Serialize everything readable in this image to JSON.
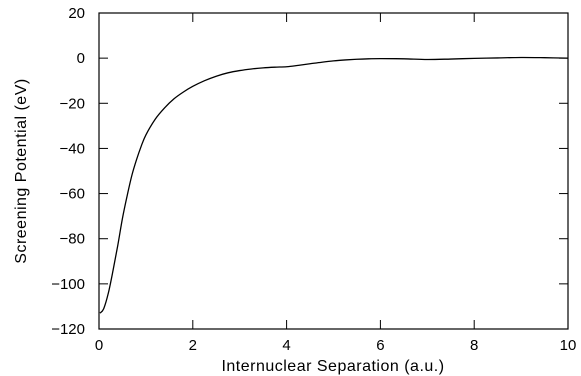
{
  "chart_data": {
    "type": "line",
    "title": "",
    "xlabel": "Internuclear Separation (a.u.)",
    "ylabel": "Screening Potential (eV)",
    "xlim": [
      0,
      10
    ],
    "ylim": [
      -120,
      20
    ],
    "x_ticks": [
      0,
      2,
      4,
      6,
      8,
      10
    ],
    "y_ticks": [
      20,
      0,
      -20,
      -40,
      -60,
      -80,
      -100,
      -120
    ],
    "x_tick_labels": [
      "0",
      "2",
      "4",
      "6",
      "8",
      "10"
    ],
    "y_tick_labels": [
      "20",
      "0",
      "−20",
      "−40",
      "−60",
      "−80",
      "−100",
      "−120"
    ],
    "grid": false,
    "legend": "none",
    "series": [
      {
        "x": [
          0.02,
          0.1,
          0.2,
          0.3,
          0.4,
          0.5,
          0.6,
          0.7,
          0.8,
          0.9,
          1.0,
          1.2,
          1.4,
          1.6,
          1.8,
          2.0,
          2.25,
          2.5,
          2.75,
          3.0,
          3.25,
          3.5,
          3.75,
          4.0,
          4.25,
          4.5,
          4.75,
          5.0,
          5.25,
          5.5,
          5.75,
          6.0,
          6.5,
          7.0,
          7.5,
          8.0,
          8.5,
          9.0,
          9.5,
          10.0
        ],
        "y": [
          -113,
          -111,
          -104,
          -94,
          -83,
          -71,
          -61,
          -52,
          -45,
          -39,
          -34,
          -27,
          -22,
          -18,
          -15,
          -12.5,
          -10,
          -8,
          -6.5,
          -5.5,
          -4.8,
          -4.3,
          -4.0,
          -3.8,
          -3.2,
          -2.5,
          -1.8,
          -1.2,
          -0.8,
          -0.5,
          -0.3,
          -0.2,
          -0.3,
          -0.6,
          -0.4,
          -0.1,
          0.1,
          0.3,
          0.2,
          0.0
        ]
      }
    ]
  }
}
